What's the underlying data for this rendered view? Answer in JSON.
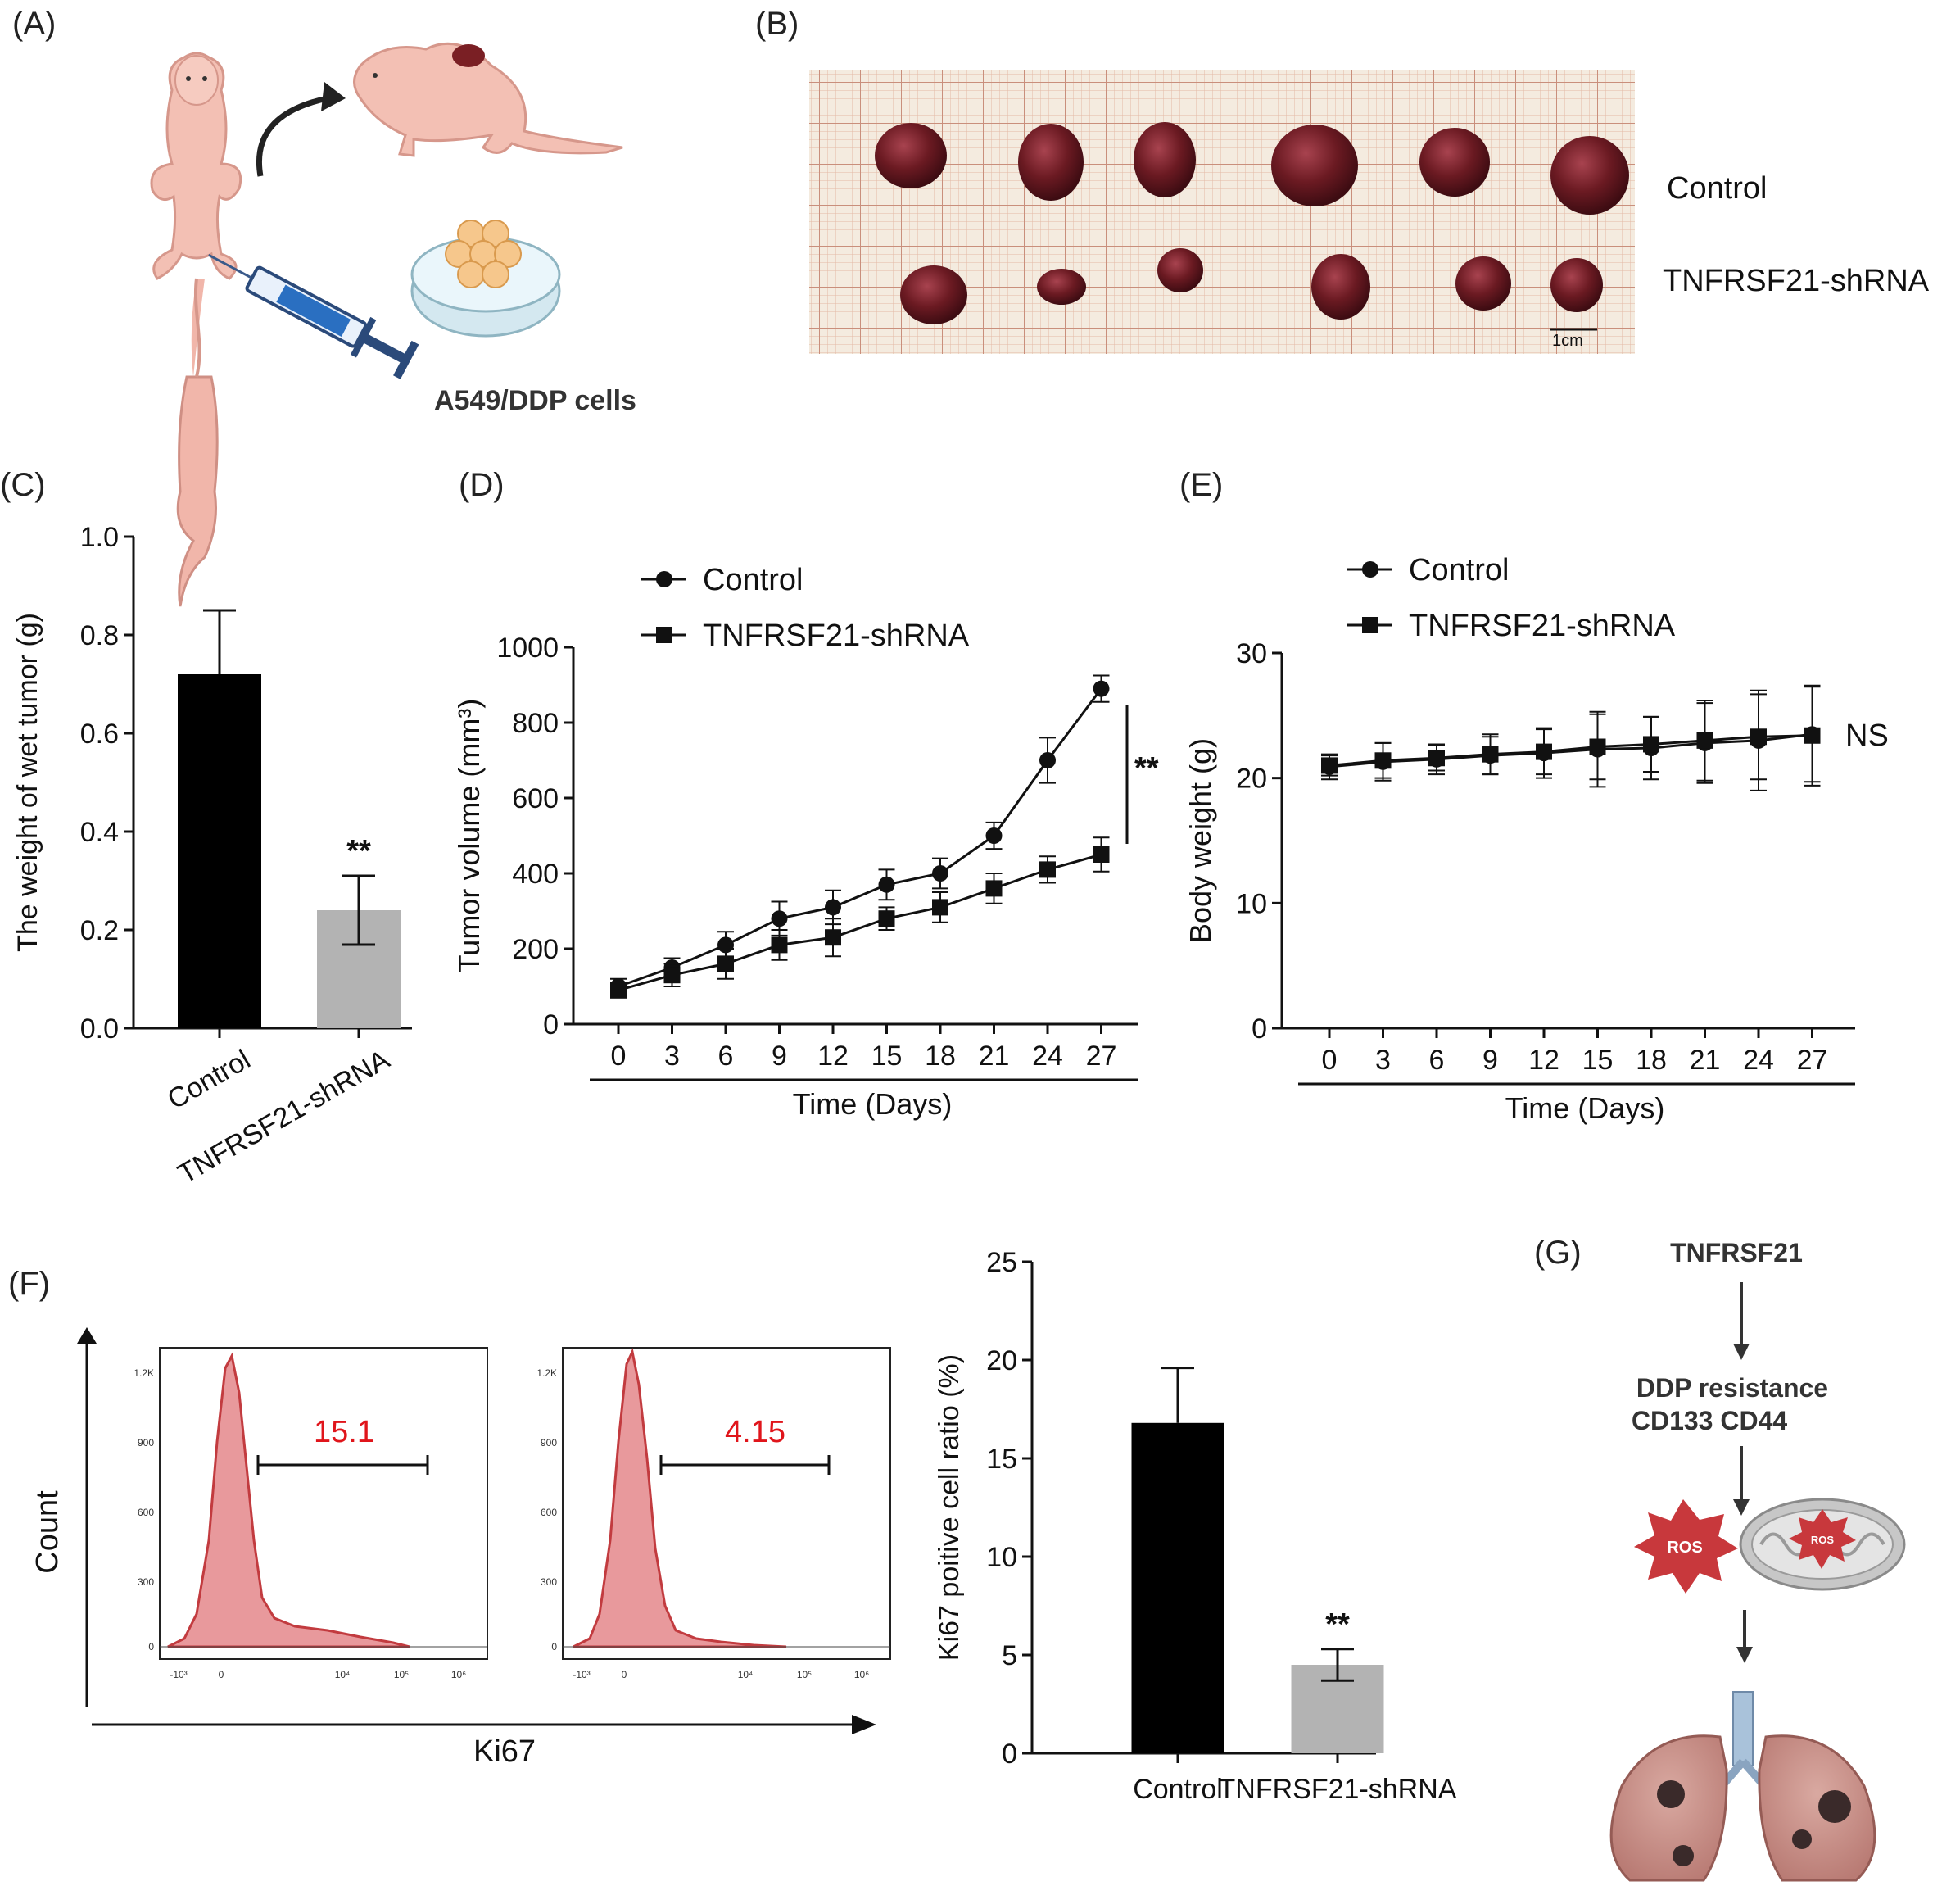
{
  "panels": {
    "A": {
      "label": "(A)",
      "cells_label": "A549/DDP cells"
    },
    "B": {
      "label": "(B)",
      "row1": "Control",
      "row2": "TNFRSF21-shRNA",
      "scale": "1cm"
    },
    "C": {
      "label": "(C)"
    },
    "D": {
      "label": "(D)"
    },
    "E": {
      "label": "(E)"
    },
    "F": {
      "label": "(F)",
      "histo_y_label": "Count",
      "histo_x_label": "Ki67",
      "histo_y_ticks": [
        "1.2K",
        "900",
        "600",
        "300",
        "0"
      ],
      "histo_x_ticks": [
        "-10³",
        "0",
        "10⁴",
        "10⁵",
        "10⁶"
      ],
      "control_gate": "15.1",
      "shrna_gate": "4.15"
    },
    "G": {
      "label": "(G)",
      "step1": "TNFRSF21",
      "step2a": "DDP resistance",
      "step2b": "CD133 CD44",
      "ros": "ROS",
      "ros_small": "ROS"
    }
  },
  "colors": {
    "control_bar": "#000000",
    "shrna_bar": "#b3b3b3",
    "histogram_fill": "#e8999c",
    "histogram_line": "#c23b3f",
    "gate_value": "#e0151b",
    "ros": "#c8383c",
    "tumor": "#6b1a22",
    "grid_paper": "#efe3d3"
  },
  "chart_data": [
    {
      "id": "C",
      "type": "bar",
      "title": "",
      "xlabel": "",
      "ylabel": "The weight of wet tumor (g)",
      "categories": [
        "Control",
        "TNFRSF21-shRNA"
      ],
      "values": [
        0.72,
        0.24
      ],
      "errors": [
        0.13,
        0.07
      ],
      "ylim": [
        0,
        1.0
      ],
      "yticks": [
        "0.0",
        "0.2",
        "0.4",
        "0.6",
        "0.8",
        "1.0"
      ],
      "annotation": "**"
    },
    {
      "id": "D",
      "type": "line",
      "xlabel": "Time (Days)",
      "ylabel": "Tumor volume (mm³)",
      "x": [
        0,
        3,
        6,
        9,
        12,
        15,
        18,
        21,
        24,
        27
      ],
      "xticks": [
        "0",
        "3",
        "6",
        "9",
        "12",
        "15",
        "18",
        "21",
        "24",
        "27"
      ],
      "ylim": [
        0,
        1000
      ],
      "yticks": [
        "0",
        "200",
        "400",
        "600",
        "800",
        "1000"
      ],
      "series": [
        {
          "name": "Control",
          "marker": "circle",
          "values": [
            100,
            150,
            210,
            280,
            310,
            370,
            400,
            500,
            700,
            890
          ],
          "errors": [
            20,
            25,
            35,
            45,
            45,
            40,
            40,
            35,
            60,
            35
          ]
        },
        {
          "name": "TNFRSF21-shRNA",
          "marker": "square",
          "values": [
            90,
            130,
            160,
            210,
            230,
            280,
            310,
            360,
            410,
            450
          ],
          "errors": [
            20,
            30,
            40,
            40,
            50,
            30,
            40,
            40,
            35,
            45
          ]
        }
      ],
      "annotation": "**"
    },
    {
      "id": "E",
      "type": "line",
      "xlabel": "Time (Days)",
      "ylabel": "Body weight (g)",
      "x": [
        0,
        3,
        6,
        9,
        12,
        15,
        18,
        21,
        24,
        27
      ],
      "xticks": [
        "0",
        "3",
        "6",
        "9",
        "12",
        "15",
        "18",
        "21",
        "24",
        "27"
      ],
      "ylim": [
        0,
        30
      ],
      "yticks": [
        "0",
        "10",
        "20",
        "30"
      ],
      "series": [
        {
          "name": "Control",
          "marker": "circle",
          "values": [
            20.9,
            21.3,
            21.5,
            21.8,
            22.0,
            22.3,
            22.4,
            22.8,
            23.0,
            23.5
          ],
          "errors": [
            1.0,
            1.5,
            1.2,
            1.5,
            2.0,
            3.0,
            2.5,
            3.2,
            4.0,
            3.8
          ]
        },
        {
          "name": "TNFRSF21-shRNA",
          "marker": "square",
          "values": [
            21.0,
            21.4,
            21.6,
            21.9,
            22.1,
            22.5,
            22.7,
            23.0,
            23.3,
            23.4
          ],
          "errors": [
            0.8,
            1.4,
            1.0,
            1.6,
            1.8,
            2.6,
            2.2,
            3.2,
            3.4,
            4.0
          ]
        }
      ],
      "annotation": "NS"
    },
    {
      "id": "F",
      "type": "bar",
      "xlabel": "",
      "ylabel": "Ki67 poitive cell ratio (%)",
      "categories": [
        "Control",
        "TNFRSF21-shRNA"
      ],
      "values": [
        16.8,
        4.5
      ],
      "errors": [
        2.8,
        0.8
      ],
      "ylim": [
        0,
        25
      ],
      "yticks": [
        "0",
        "5",
        "10",
        "15",
        "20",
        "25"
      ],
      "annotation": "**"
    }
  ]
}
